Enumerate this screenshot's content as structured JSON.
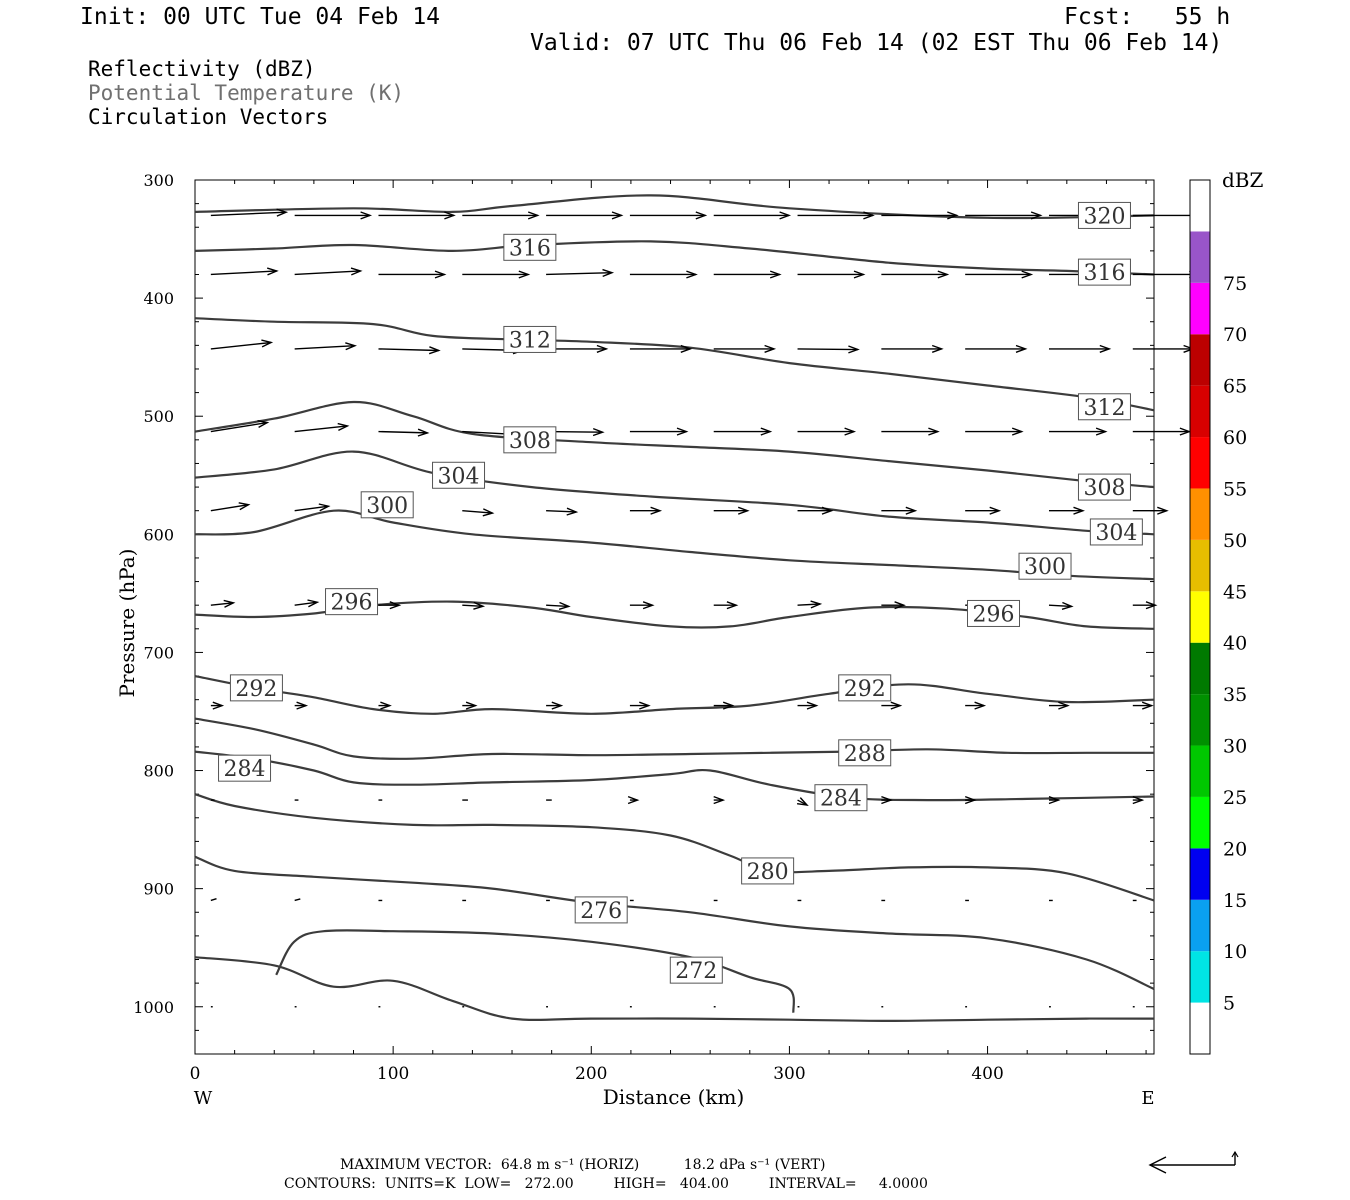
{
  "header": {
    "init": "Init: 00 UTC Tue 04 Feb 14",
    "fcst": "Fcst:   55 h",
    "valid": "Valid: 07 UTC Thu 06 Feb 14 (02 EST Thu 06 Feb 14)"
  },
  "legend": {
    "line1": "Reflectivity (dBZ)",
    "line2": "Potential Temperature (K)",
    "line3": "Circulation Vectors"
  },
  "footer": {
    "max_vector": "MAXIMUM VECTOR:  64.8 m s⁻¹ (HORIZ)          18.2 dPa s⁻¹ (VERT)",
    "contours": "CONTOURS:  UNITS=K  LOW=   272.00         HIGH=   404.00         INTERVAL=     4.0000"
  },
  "colors": {
    "contour": "#3c3c3c",
    "vector": "#000000",
    "legend_gray": "#707070"
  },
  "chart_data": {
    "type": "contour",
    "title": "",
    "xlabel": "Distance (km)",
    "ylabel": "Pressure (hPa)",
    "xlim": [
      0,
      484
    ],
    "ylim": [
      1040,
      300
    ],
    "x_ticks": [
      0,
      100,
      200,
      300,
      400
    ],
    "y_ticks": [
      300,
      400,
      500,
      600,
      700,
      800,
      900,
      1000
    ],
    "x_end_labels": {
      "left": "W",
      "right": "E"
    },
    "colorbar": {
      "label": "dBZ",
      "ticks": [
        5,
        10,
        15,
        20,
        25,
        30,
        35,
        40,
        45,
        50,
        55,
        60,
        65,
        70,
        75
      ],
      "colors": [
        "#ffffff",
        "#00e4e4",
        "#0aa0f0",
        "#0000f0",
        "#00ff00",
        "#00c800",
        "#009000",
        "#007a00",
        "#ffff00",
        "#e6be00",
        "#ff9000",
        "#ff0000",
        "#d80000",
        "#bc0000",
        "#ff00ff",
        "#9955c9",
        "#ffffff"
      ]
    },
    "contours": [
      {
        "label": "320",
        "x": [
          0,
          80,
          130,
          160,
          230,
          300,
          400,
          484
        ],
        "y": [
          327,
          324,
          327,
          322,
          313,
          324,
          332,
          330
        ],
        "labels_at": [
          [
            459,
            330
          ]
        ]
      },
      {
        "label": "316",
        "x": [
          0,
          40,
          80,
          130,
          170,
          230,
          280,
          350,
          400,
          440,
          484
        ],
        "y": [
          360,
          358,
          355,
          360,
          355,
          352,
          358,
          370,
          375,
          377,
          380
        ],
        "labels_at": [
          [
            169,
            357
          ],
          [
            459,
            378
          ]
        ]
      },
      {
        "label": "312",
        "x": [
          0,
          40,
          90,
          120,
          160,
          200,
          250,
          300,
          350,
          400,
          450,
          484
        ],
        "y": [
          417,
          420,
          422,
          432,
          435,
          437,
          442,
          455,
          464,
          474,
          484,
          495
        ],
        "labels_at": [
          [
            169,
            435
          ],
          [
            459,
            492
          ]
        ]
      },
      {
        "label": "308",
        "x": [
          0,
          40,
          80,
          110,
          140,
          200,
          250,
          300,
          350,
          400,
          450,
          484
        ],
        "y": [
          513,
          502,
          488,
          500,
          515,
          522,
          526,
          530,
          538,
          546,
          555,
          560
        ],
        "labels_at": [
          [
            169,
            520
          ],
          [
            459,
            560
          ]
        ]
      },
      {
        "label": "304",
        "x": [
          0,
          40,
          80,
          120,
          170,
          230,
          300,
          350,
          400,
          450,
          484
        ],
        "y": [
          552,
          545,
          530,
          548,
          560,
          568,
          575,
          585,
          590,
          597,
          600
        ],
        "labels_at": [
          [
            133,
            550
          ],
          [
            465,
            598
          ]
        ]
      },
      {
        "label": "300",
        "x": [
          0,
          30,
          70,
          100,
          140,
          200,
          250,
          300,
          350,
          400,
          440,
          484
        ],
        "y": [
          600,
          598,
          580,
          590,
          600,
          607,
          615,
          622,
          626,
          630,
          635,
          638
        ],
        "labels_at": [
          [
            97,
            575
          ],
          [
            429,
            627
          ]
        ]
      },
      {
        "label": "296",
        "x": [
          0,
          30,
          60,
          90,
          130,
          170,
          200,
          240,
          270,
          300,
          340,
          380,
          420,
          450,
          484
        ],
        "y": [
          668,
          670,
          667,
          660,
          657,
          662,
          670,
          678,
          678,
          670,
          662,
          663,
          670,
          678,
          680
        ],
        "labels_at": [
          [
            79,
            657
          ],
          [
            403,
            667
          ]
        ]
      },
      {
        "label": "292",
        "x": [
          0,
          30,
          60,
          90,
          120,
          150,
          200,
          240,
          280,
          320,
          360,
          400,
          440,
          484
        ],
        "y": [
          720,
          730,
          738,
          748,
          752,
          748,
          752,
          748,
          745,
          735,
          727,
          735,
          742,
          740
        ],
        "labels_at": [
          [
            31,
            730
          ],
          [
            338,
            730
          ]
        ]
      },
      {
        "label": "288",
        "x": [
          0,
          30,
          60,
          80,
          110,
          150,
          200,
          250,
          290,
          330,
          370,
          410,
          450,
          484
        ],
        "y": [
          756,
          765,
          778,
          788,
          790,
          786,
          787,
          786,
          785,
          784,
          782,
          785,
          785,
          785
        ],
        "labels_at": [
          [
            338,
            785
          ]
        ]
      },
      {
        "label": "284",
        "x": [
          0,
          30,
          60,
          80,
          110,
          150,
          200,
          240,
          260,
          290,
          330,
          370,
          420,
          484
        ],
        "y": [
          784,
          790,
          800,
          810,
          812,
          810,
          808,
          803,
          800,
          812,
          823,
          825,
          824,
          822
        ],
        "labels_at": [
          [
            25,
            798
          ],
          [
            326,
            823
          ]
        ]
      },
      {
        "label": "280",
        "x": [
          0,
          20,
          60,
          110,
          150,
          200,
          240,
          270,
          290,
          320,
          360,
          400,
          440,
          484
        ],
        "y": [
          820,
          830,
          840,
          846,
          846,
          848,
          855,
          872,
          885,
          885,
          882,
          882,
          887,
          910
        ],
        "labels_at": [
          [
            289,
            885
          ]
        ]
      },
      {
        "label": "276",
        "x": [
          0,
          20,
          60,
          110,
          150,
          200,
          250,
          300,
          350,
          400,
          450,
          484
        ],
        "y": [
          873,
          885,
          890,
          895,
          900,
          912,
          920,
          932,
          938,
          942,
          960,
          985
        ],
        "labels_at": [
          [
            205,
            918
          ]
        ]
      },
      {
        "label": "272a",
        "x": [
          0,
          40,
          70,
          100,
          130,
          160,
          200,
          250,
          300,
          350,
          400,
          450,
          484
        ],
        "y": [
          958,
          965,
          983,
          978,
          995,
          1010,
          1010,
          1010,
          1011,
          1012,
          1011,
          1010,
          1010
        ],
        "labels_at": []
      },
      {
        "label": "272",
        "x": [
          41,
          50,
          65,
          100,
          150,
          200,
          250,
          280,
          300,
          302
        ],
        "y": [
          973,
          945,
          936,
          936,
          938,
          945,
          958,
          975,
          985,
          1005
        ],
        "labels_at": [
          [
            253,
            969
          ]
        ]
      }
    ],
    "vectors": {
      "note": "",
      "rows": [
        {
          "p": 330,
          "x0": 0,
          "dx": 42.3,
          "len": [
            40,
            40,
            40,
            40,
            40,
            40,
            40,
            40,
            40,
            40,
            40,
            40
          ],
          "tilt": [
            -0.08,
            0,
            0,
            0,
            0,
            0,
            0,
            0,
            0,
            0,
            0,
            0
          ]
        },
        {
          "p": 380,
          "x0": 0,
          "dx": 42.3,
          "len": [
            35,
            35,
            35,
            35,
            35,
            35,
            35,
            35,
            35,
            35,
            35,
            35
          ],
          "tilt": [
            -0.1,
            -0.1,
            0,
            0,
            -0.05,
            0,
            0,
            0,
            0,
            0,
            0,
            0
          ]
        },
        {
          "p": 443,
          "x0": 0,
          "dx": 42.3,
          "len": [
            32,
            32,
            32,
            32,
            32,
            32,
            32,
            32,
            32,
            32,
            32,
            32
          ],
          "tilt": [
            -0.2,
            -0.1,
            0.05,
            0.05,
            0,
            0,
            0,
            0.02,
            0,
            0,
            0,
            0
          ]
        },
        {
          "p": 513,
          "x0": 0,
          "dx": 42.3,
          "len": [
            30,
            28,
            26,
            30,
            30,
            30,
            30,
            30,
            30,
            30,
            30,
            30
          ],
          "tilt": [
            -0.3,
            -0.2,
            0.05,
            0.1,
            0.02,
            0,
            0,
            0,
            0,
            0,
            0,
            0
          ]
        },
        {
          "p": 580,
          "x0": 0,
          "dx": 42.3,
          "len": [
            20,
            18,
            14,
            16,
            16,
            16,
            18,
            18,
            18,
            18,
            18,
            18
          ],
          "tilt": [
            -0.3,
            -0.25,
            0.05,
            0.15,
            0.08,
            0,
            0,
            0,
            0,
            0,
            0,
            0
          ]
        },
        {
          "p": 660,
          "x0": 0,
          "dx": 42.3,
          "len": [
            12,
            12,
            11,
            11,
            12,
            12,
            12,
            12,
            12,
            12,
            12,
            12
          ],
          "tilt": [
            -0.2,
            -0.25,
            0,
            0.1,
            0.1,
            0,
            0,
            -0.1,
            0,
            0,
            0.1,
            0
          ]
        },
        {
          "p": 745,
          "x0": 0,
          "dx": 42.3,
          "len": [
            6,
            6,
            6,
            7,
            8,
            10,
            10,
            10,
            10,
            10,
            10,
            10
          ],
          "tilt": [
            0,
            0,
            0,
            0,
            0,
            0,
            0,
            0,
            0,
            0,
            0,
            0
          ]
        },
        {
          "p": 825,
          "x0": 0,
          "dx": 42.3,
          "len": [
            2,
            2,
            2,
            3,
            3,
            4,
            5,
            5,
            5,
            5,
            5,
            5
          ],
          "tilt": [
            0,
            0,
            0,
            0,
            0,
            0,
            0,
            1,
            0,
            0,
            0,
            0
          ]
        },
        {
          "p": 910,
          "x0": 0,
          "dx": 42.3,
          "len": [
            3,
            3,
            2,
            2,
            2,
            2,
            2,
            2,
            2,
            2,
            2,
            2
          ],
          "tilt": [
            -0.6,
            -0.5,
            0,
            0,
            0,
            0,
            0,
            0,
            0,
            0,
            0,
            0
          ]
        },
        {
          "p": 1000,
          "x0": 0,
          "dx": 42.3,
          "len": [
            1,
            1,
            1,
            1,
            1,
            1,
            1,
            1,
            1,
            1,
            1,
            1
          ],
          "tilt": [
            0,
            0,
            0,
            0,
            0,
            0,
            0,
            0,
            0,
            0,
            0,
            0
          ]
        }
      ]
    }
  }
}
